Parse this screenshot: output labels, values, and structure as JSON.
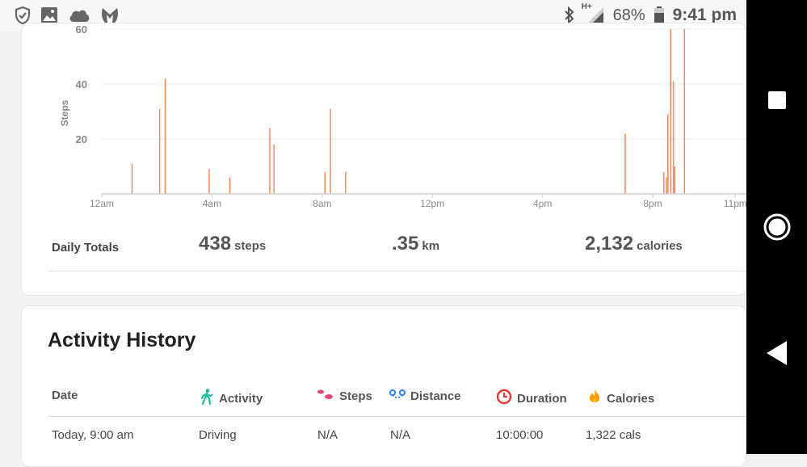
{
  "status_bar": {
    "left_icons": [
      "shield-check-icon",
      "image-icon",
      "cloud-icon",
      "malwarebytes-icon"
    ],
    "network": "H+",
    "battery": "68%",
    "time": "9:41 pm"
  },
  "nav_bar": {
    "buttons": [
      "recents-square-icon",
      "home-circle-icon",
      "back-triangle-icon"
    ]
  },
  "chart_data": {
    "type": "bar",
    "ylabel": "Steps",
    "yticks": [
      20,
      40,
      60
    ],
    "ylim": [
      0,
      61
    ],
    "xlim": [
      0,
      23.4
    ],
    "xtick_labels": [
      "12am",
      "4am",
      "8am",
      "12pm",
      "4pm",
      "8pm",
      "11pm"
    ],
    "xtick_hours": [
      0,
      4,
      8,
      12,
      16,
      20,
      23
    ],
    "grid": true,
    "color": "#f08a5d",
    "points": [
      {
        "x": 1.1,
        "y": 11
      },
      {
        "x": 2.1,
        "y": 31
      },
      {
        "x": 2.3,
        "y": 42
      },
      {
        "x": 3.9,
        "y": 9
      },
      {
        "x": 4.65,
        "y": 6
      },
      {
        "x": 6.1,
        "y": 24
      },
      {
        "x": 6.25,
        "y": 18
      },
      {
        "x": 8.1,
        "y": 8
      },
      {
        "x": 8.3,
        "y": 31
      },
      {
        "x": 8.85,
        "y": 8
      },
      {
        "x": 19.0,
        "y": 22
      },
      {
        "x": 20.4,
        "y": 8
      },
      {
        "x": 20.5,
        "y": 6
      },
      {
        "x": 20.55,
        "y": 29
      },
      {
        "x": 20.65,
        "y": 60
      },
      {
        "x": 20.75,
        "y": 41
      },
      {
        "x": 20.8,
        "y": 10
      },
      {
        "x": 21.15,
        "y": 60
      }
    ]
  },
  "daily_totals": {
    "label": "Daily Totals",
    "steps": {
      "value": "438",
      "unit": "steps"
    },
    "distance": {
      "value": ".35",
      "unit": "km"
    },
    "calories": {
      "value": "2,132",
      "unit": "calories"
    }
  },
  "activity_history": {
    "title": "Activity History",
    "columns": [
      {
        "label": "Date",
        "icon": ""
      },
      {
        "label": "Activity",
        "icon": "walking-figure-icon"
      },
      {
        "label": "Steps",
        "icon": "footprints-icon"
      },
      {
        "label": "Distance",
        "icon": "route-icon"
      },
      {
        "label": "Duration",
        "icon": "clock-icon"
      },
      {
        "label": "Calories",
        "icon": "flame-icon"
      }
    ],
    "rows": [
      {
        "date": "Today, 9:00 am",
        "activity": "Driving",
        "steps": "N/A",
        "distance": "N/A",
        "duration": "10:00:00",
        "calories": "1,322 cals"
      }
    ]
  },
  "colors": {
    "accent": "#f08a5d",
    "walk": "#1bbfa0",
    "steps": "#e0457b",
    "distance": "#2b7de9",
    "duration": "#e53935",
    "calories": "#ff9800"
  }
}
